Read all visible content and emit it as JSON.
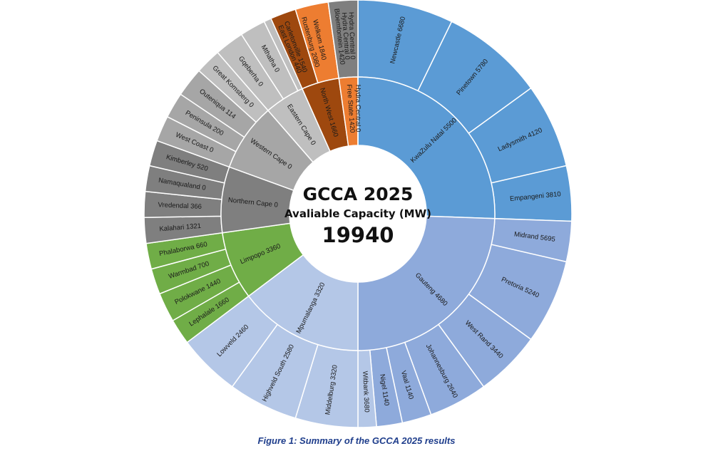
{
  "caption": "Figure 1: Summary of the GCCA 2025 results",
  "chart_data": {
    "type": "sunburst",
    "title": "GCCA 2025",
    "subtitle": "Avaliable Capacity (MW)",
    "total_label": "19940",
    "total": 19940,
    "inner": [
      {
        "label": "KwaZulu Natal 5500",
        "color": "#5b9bd5",
        "text_color": "#1a1a1a"
      },
      {
        "label": "Gauteng 4680",
        "color": "#8eaadb",
        "text_color": "#1a1a1a"
      },
      {
        "label": "Mpumalanga 3320",
        "color": "#b4c7e7",
        "text_color": "#1a1a1a"
      },
      {
        "label": "Limpopo 3360",
        "color": "#70ad47",
        "text_color": "#1a1a1a"
      },
      {
        "label": "Northern Cape 0",
        "color": "#7f7f7f",
        "text_color": "#1a1a1a"
      },
      {
        "label": "Western Cape 0",
        "color": "#a6a6a6",
        "text_color": "#1a1a1a"
      },
      {
        "label": "Eastern Cape 0",
        "color": "#bfbfbf",
        "text_color": "#1a1a1a"
      },
      {
        "label": "North West 1660",
        "color": "#9e480e",
        "text_color": "#1a1a1a"
      },
      {
        "label": "Free State 1420",
        "color": "#ed7d31",
        "text_color": "#1a1a1a"
      },
      {
        "label": "Hydra Central 0",
        "color": "#7f7f7f",
        "text_color": "#1a1a1a"
      }
    ],
    "outer": [
      {
        "label": "Newcastle 6680",
        "parent": 0
      },
      {
        "label": "Pinetown 5780",
        "parent": 0
      },
      {
        "label": "Ladysmith 4120",
        "parent": 0
      },
      {
        "label": "Empangeni 3810",
        "parent": 0
      },
      {
        "label": "Midrand 5695",
        "parent": 1
      },
      {
        "label": "Pretoria 5240",
        "parent": 1
      },
      {
        "label": "West Rand 3440",
        "parent": 1
      },
      {
        "label": "Johannesburg 2640",
        "parent": 1
      },
      {
        "label": "Vaal 1140",
        "parent": 1
      },
      {
        "label": "Nigel 1140",
        "parent": 1
      },
      {
        "label": "Witbank 3680",
        "parent": 2
      },
      {
        "label": "Middelburg 3320",
        "parent": 2
      },
      {
        "label": "Highveld South 2580",
        "parent": 2
      },
      {
        "label": "Lowveld 2460",
        "parent": 2
      },
      {
        "label": "Lephalale 1660",
        "parent": 3
      },
      {
        "label": "Polokwane 1440",
        "parent": 3
      },
      {
        "label": "Warmbad 700",
        "parent": 3
      },
      {
        "label": "Phalaborwa 660",
        "parent": 3
      },
      {
        "label": "Kalahari 1321",
        "parent": 4
      },
      {
        "label": "Vredendal 366",
        "parent": 4
      },
      {
        "label": "Namaqualand 0",
        "parent": 4
      },
      {
        "label": "Kimberley 520",
        "parent": 4
      },
      {
        "label": "West Coast 0",
        "parent": 5
      },
      {
        "label": "Peninsula 200",
        "parent": 5
      },
      {
        "label": "Outeniqua 114",
        "parent": 5
      },
      {
        "label": "Great Komsberg 0",
        "parent": 6
      },
      {
        "label": "Gqeberha 0",
        "parent": 6
      },
      {
        "label": "Mthatha 0",
        "parent": 6
      },
      {
        "label": "East London 440",
        "parent": 6
      },
      {
        "label": "Rustenburg 2080",
        "parent": 7
      },
      {
        "label": "Carletonville 1540",
        "parent": 7
      },
      {
        "label": "Welkom 1840",
        "parent": 8
      },
      {
        "label": "Bloemfontein 1420",
        "parent": 8
      },
      {
        "label": "Hydra Central 0",
        "parent": 9
      }
    ],
    "outer_colors": {
      "0": "#5b9bd5",
      "1": "#8eaadb",
      "2": "#b4c7e7",
      "3": "#70ad47",
      "4": "#7f7f7f",
      "5": "#a6a6a6",
      "6": "#bfbfbf",
      "7": "#9e480e",
      "8": "#ed7d31",
      "9": "#7f7f7f"
    }
  }
}
